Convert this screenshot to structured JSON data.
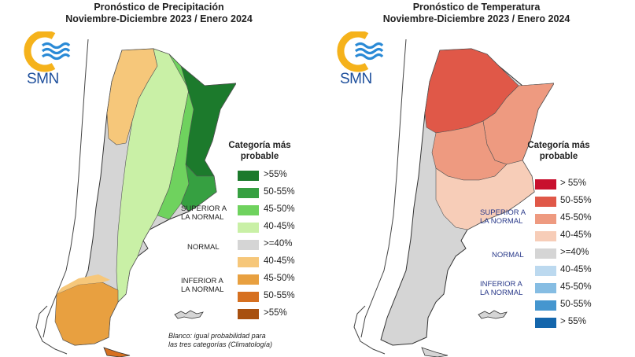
{
  "left": {
    "title_line1": "Pronóstico de Precipitación",
    "title_line2": "Noviembre-Diciembre 2023 / Enero 2024",
    "logo_text": "SMN",
    "legend_title_line1": "Categoría más",
    "legend_title_line2": "probable",
    "legend": [
      {
        "label": ">55%",
        "color": "#1c7a2c"
      },
      {
        "label": "50-55%",
        "color": "#36a041"
      },
      {
        "label": "45-50%",
        "color": "#6fd25e"
      },
      {
        "label": "40-45%",
        "color": "#c9f0a6"
      },
      {
        "label": ">=40%",
        "color": "#d5d5d5"
      },
      {
        "label": "40-45%",
        "color": "#f6c77a"
      },
      {
        "label": "45-50%",
        "color": "#e8a040"
      },
      {
        "label": "50-55%",
        "color": "#d67020"
      },
      {
        "label": ">55%",
        "color": "#a8500f"
      }
    ],
    "group_superior_line1": "SUPERIOR A",
    "group_superior_line2": "LA NORMAL",
    "group_normal": "NORMAL",
    "group_inferior_line1": "INFERIOR A",
    "group_inferior_line2": "LA NORMAL",
    "footnote_line1": "Blanco: igual probabilidad para",
    "footnote_line2": "las tres categorías (Climatología)"
  },
  "right": {
    "title_line1": "Pronóstico de Temperatura",
    "title_line2": "Noviembre-Diciembre 2023 / Enero 2024",
    "logo_text": "SMN",
    "legend_title_line1": "Categoría más",
    "legend_title_line2": "probable",
    "legend": [
      {
        "label": "> 55%",
        "color": "#c8102e"
      },
      {
        "label": "50-55%",
        "color": "#e05848"
      },
      {
        "label": "45-50%",
        "color": "#ee9a80"
      },
      {
        "label": "40-45%",
        "color": "#f7cdb8"
      },
      {
        "label": ">=40%",
        "color": "#d5d5d5"
      },
      {
        "label": "40-45%",
        "color": "#bcd9ef"
      },
      {
        "label": "45-50%",
        "color": "#86bde3"
      },
      {
        "label": "50-55%",
        "color": "#4596cf"
      },
      {
        "label": "> 55%",
        "color": "#1466ac"
      }
    ],
    "group_superior_line1": "SUPERIOR A",
    "group_superior_line2": "LA NORMAL",
    "group_normal": "NORMAL",
    "group_inferior_line1": "INFERIOR A",
    "group_inferior_line2": "LA NORMAL"
  },
  "colors": {
    "logo_sun": "#f5b21b",
    "logo_waves": "#2a8ad6",
    "logo_text": "#1e4f9c",
    "country_outline": "#444444",
    "province_border": "#555555"
  }
}
